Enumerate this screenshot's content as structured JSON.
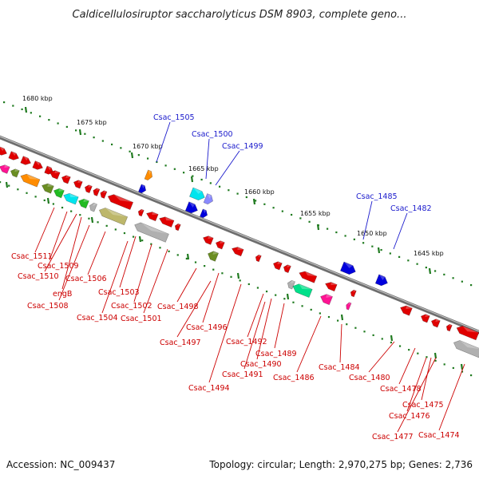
{
  "title": "Caldicellulosiruptor saccharolyticus DSM 8903, complete geno...",
  "footer": {
    "accession": "Accession: NC_009437",
    "summary": "Topology: circular; Length: 2,970,275 bp; Genes: 2,736"
  },
  "scale_ticks": [
    "1680 kbp",
    "1675 kbp",
    "1670 kbp",
    "1665 kbp",
    "1660 kbp",
    "1655 kbp",
    "1650 kbp",
    "1645 kbp"
  ],
  "labels_forward": [
    "Csac_1505",
    "Csac_1500",
    "Csac_1499",
    "Csac_1485",
    "Csac_1482"
  ],
  "labels_reverse": [
    "Csac_1511",
    "Csac_1509",
    "Csac_1510",
    "engB",
    "Csac_1508",
    "Csac_1506",
    "Csac_1503",
    "Csac_1504",
    "Csac_1502",
    "Csac_1501",
    "Csac_1498",
    "Csac_1496",
    "Csac_1497",
    "Csac_1492",
    "Csac_1489",
    "Csac_1490",
    "Csac_1491",
    "Csac_1494",
    "Csac_1486",
    "Csac_1484",
    "Csac_1480",
    "Csac_1478",
    "Csac_1475",
    "Csac_1476",
    "Csac_1477",
    "Csac_1474"
  ],
  "colors": {
    "backbone": "#808080",
    "tick": "#1f7a1f",
    "label_forward": "#1a1acc",
    "label_reverse": "#cc0000",
    "gene_red": "#e00000",
    "gene_blue": "#0000dd",
    "gene_orange": "#ff8c00",
    "gene_cyan": "#00e5ee",
    "gene_green": "#22bb22",
    "gene_olive": "#6b8e23",
    "gene_khaki": "#bdb76b",
    "gene_gray": "#b0b0b0",
    "gene_magenta": "#ff1493",
    "gene_teal": "#00e08a",
    "gene_violet": "#8a8aff"
  }
}
